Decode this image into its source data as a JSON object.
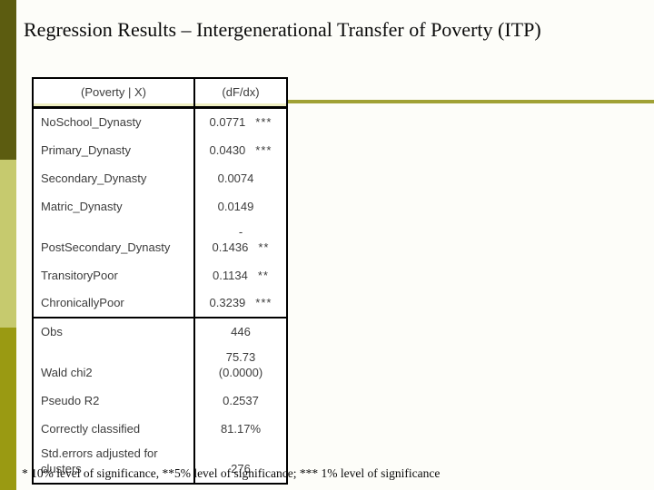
{
  "slide": {
    "title": "Regression Results – Intergenerational Transfer of Poverty (ITP)",
    "footnote": "* 10% level of significance,  **5% level of significance; *** 1% level of significance"
  },
  "table": {
    "headers": {
      "col1": "(Poverty | X)",
      "col2": "(dF/dx)"
    },
    "coefficient_rows": [
      {
        "label": "NoSchool_Dynasty",
        "value": "0.0771",
        "stars": "***"
      },
      {
        "label": "Primary_Dynasty",
        "value": "0.0430",
        "stars": "***"
      },
      {
        "label": "Secondary_Dynasty",
        "value": "0.0074",
        "stars": ""
      },
      {
        "label": "Matric_Dynasty",
        "value": "0.0149",
        "stars": ""
      },
      {
        "label": "PostSecondary_Dynasty",
        "value": "-\n0.1436",
        "stars": "**"
      },
      {
        "label": "TransitoryPoor",
        "value": "0.1134",
        "stars": "**"
      },
      {
        "label": "ChronicallyPoor",
        "value": "0.3239",
        "stars": "***"
      }
    ],
    "stats_rows": [
      {
        "label": "Obs",
        "value": "446"
      },
      {
        "label": "Wald chi2",
        "value": "75.73\n(0.0000)"
      },
      {
        "label": "Pseudo R2",
        "value": "0.2537"
      },
      {
        "label": "Correctly classified",
        "value": "81.17%"
      },
      {
        "label": "Std.errors adjusted for clusters",
        "value": "276"
      }
    ]
  },
  "colors": {
    "bar_top": "#5C5C10",
    "bar_mid": "#C6CA6E",
    "bar_bottom": "#9A9A12",
    "accent_line": "#A0A135"
  }
}
